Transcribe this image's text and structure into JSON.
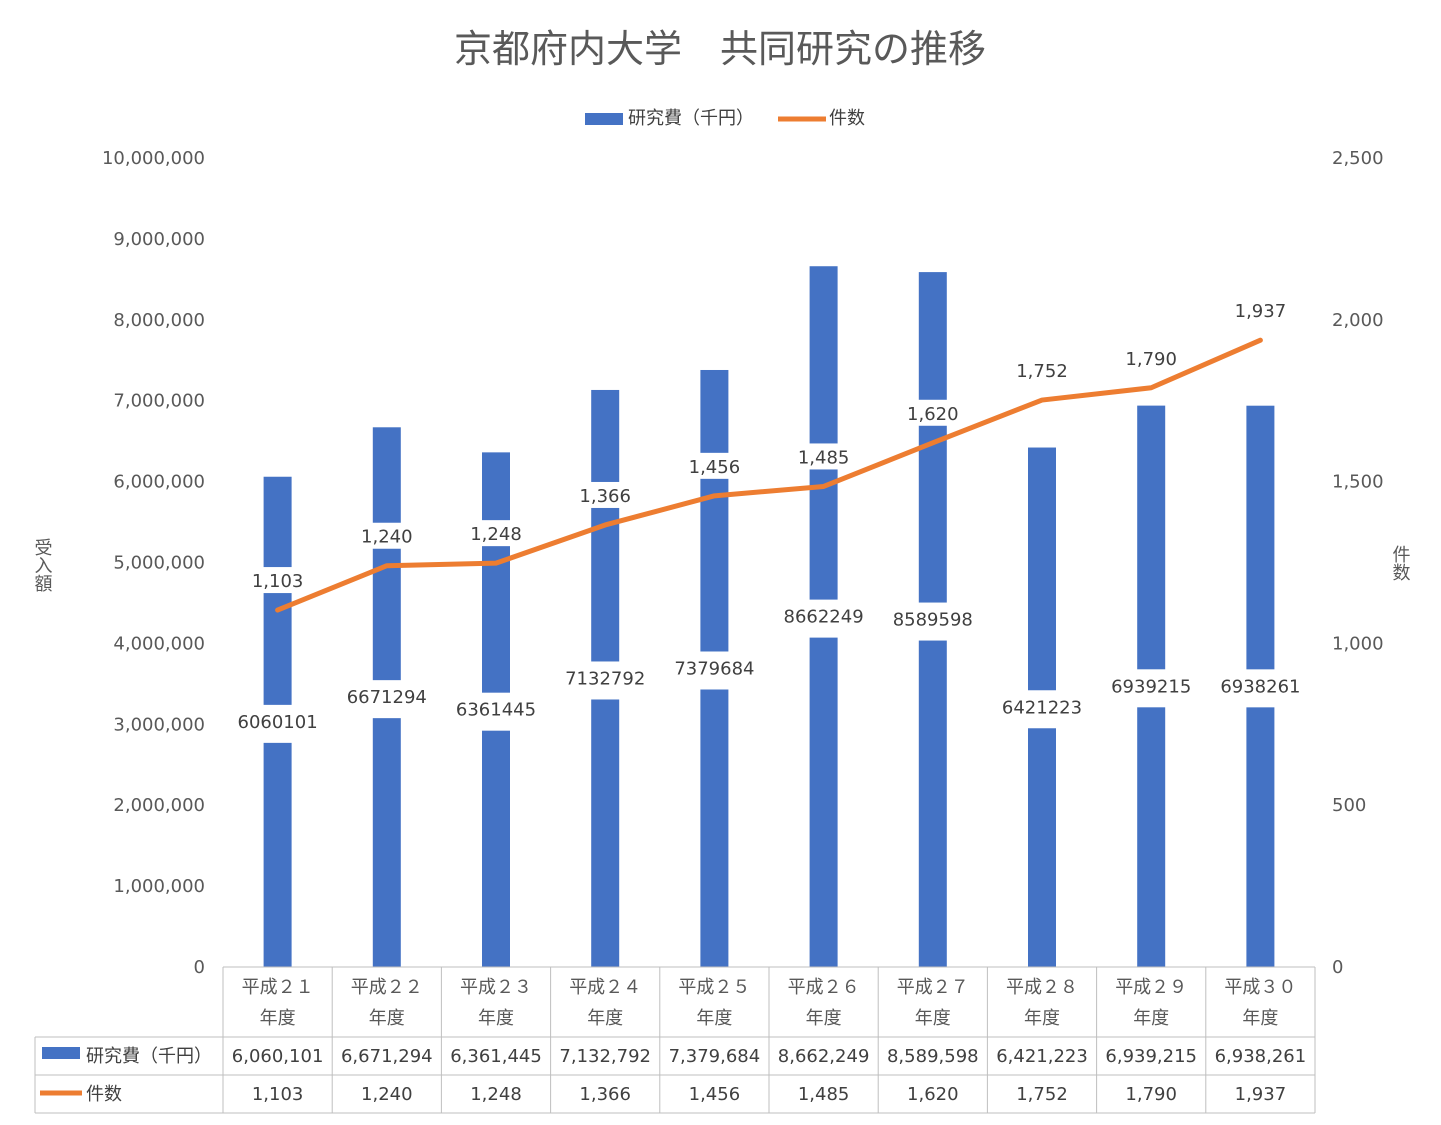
{
  "chart_data": {
    "type": "bar",
    "title": "京都府内大学　共同研究の推移",
    "categories": [
      [
        "平成２１",
        "年度"
      ],
      [
        "平成２２",
        "年度"
      ],
      [
        "平成２３",
        "年度"
      ],
      [
        "平成２４",
        "年度"
      ],
      [
        "平成２５",
        "年度"
      ],
      [
        "平成２６",
        "年度"
      ],
      [
        "平成２７",
        "年度"
      ],
      [
        "平成２８",
        "年度"
      ],
      [
        "平成２９",
        "年度"
      ],
      [
        "平成３０",
        "年度"
      ]
    ],
    "series": [
      {
        "name": "研究費（千円）",
        "type": "bar",
        "axis": "left",
        "color": "#4472C4",
        "values": [
          6060101,
          6671294,
          6361445,
          7132792,
          7379684,
          8662249,
          8589598,
          6421223,
          6939215,
          6938261
        ],
        "data_labels": [
          "6060101",
          "6671294",
          "6361445",
          "7132792",
          "7379684",
          "8662249",
          "8589598",
          "6421223",
          "6939215",
          "6938261"
        ],
        "table_values": [
          "6,060,101",
          "6,671,294",
          "6,361,445",
          "7,132,792",
          "7,379,684",
          "8,662,249",
          "8,589,598",
          "6,421,223",
          "6,939,215",
          "6,938,261"
        ]
      },
      {
        "name": "件数",
        "type": "line",
        "axis": "right",
        "color": "#ED7D31",
        "values": [
          1103,
          1240,
          1248,
          1366,
          1456,
          1485,
          1620,
          1752,
          1790,
          1937
        ],
        "data_labels": [
          "1,103",
          "1,240",
          "1,248",
          "1,366",
          "1,456",
          "1,485",
          "1,620",
          "1,752",
          "1,790",
          "1,937"
        ],
        "table_values": [
          "1,103",
          "1,240",
          "1,248",
          "1,366",
          "1,456",
          "1,485",
          "1,620",
          "1,752",
          "1,790",
          "1,937"
        ]
      }
    ],
    "y_left": {
      "label": "受入額",
      "ylim": [
        0,
        10000000
      ],
      "ticks": [
        {
          "value": 0,
          "label": "0"
        },
        {
          "value": 1000000,
          "label": "1,000,000"
        },
        {
          "value": 2000000,
          "label": "2,000,000"
        },
        {
          "value": 3000000,
          "label": "3,000,000"
        },
        {
          "value": 4000000,
          "label": "4,000,000"
        },
        {
          "value": 5000000,
          "label": "5,000,000"
        },
        {
          "value": 6000000,
          "label": "6,000,000"
        },
        {
          "value": 7000000,
          "label": "7,000,000"
        },
        {
          "value": 8000000,
          "label": "8,000,000"
        },
        {
          "value": 9000000,
          "label": "9,000,000"
        },
        {
          "value": 10000000,
          "label": "10,000,000"
        }
      ]
    },
    "y_right": {
      "label": "件数",
      "ylim": [
        0,
        2500
      ],
      "ticks": [
        {
          "value": 0,
          "label": "0"
        },
        {
          "value": 500,
          "label": "500"
        },
        {
          "value": 1000,
          "label": "1,000"
        },
        {
          "value": 1500,
          "label": "1,500"
        },
        {
          "value": 2000,
          "label": "2,000"
        },
        {
          "value": 2500,
          "label": "2,500"
        }
      ]
    },
    "grid": false,
    "legend_position": "top",
    "data_table": true
  }
}
